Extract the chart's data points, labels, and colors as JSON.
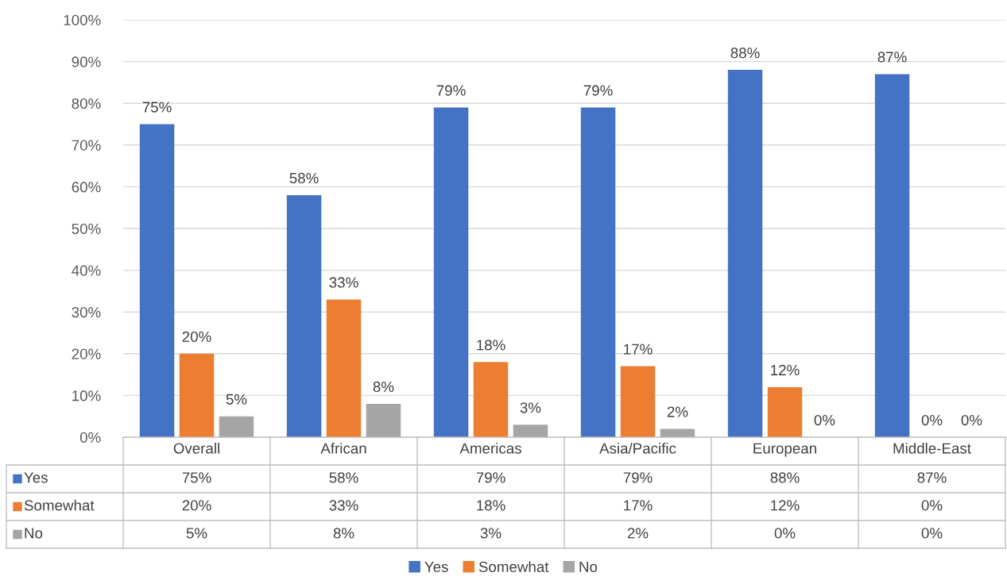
{
  "chart_data": {
    "type": "bar",
    "categories": [
      "Overall",
      "African",
      "Americas",
      "Asia/Pacific",
      "European",
      "Middle-East"
    ],
    "series": [
      {
        "name": "Yes",
        "color": "#4472c4",
        "values": [
          75,
          58,
          79,
          79,
          88,
          87
        ],
        "value_labels": [
          "75%",
          "58%",
          "79%",
          "79%",
          "88%",
          "87%"
        ]
      },
      {
        "name": "Somewhat",
        "color": "#ed7d31",
        "values": [
          20,
          33,
          18,
          17,
          12,
          0
        ],
        "value_labels": [
          "20%",
          "33%",
          "18%",
          "17%",
          "12%",
          "0%"
        ]
      },
      {
        "name": "No",
        "color": "#a5a5a5",
        "values": [
          5,
          8,
          3,
          2,
          0,
          0
        ],
        "value_labels": [
          "5%",
          "8%",
          "3%",
          "2%",
          "0%",
          "0%"
        ]
      }
    ],
    "ylim": [
      0,
      100
    ],
    "yticks": [
      {
        "value": 0,
        "label": "0%"
      },
      {
        "value": 10,
        "label": "10%"
      },
      {
        "value": 20,
        "label": "20%"
      },
      {
        "value": 30,
        "label": "30%"
      },
      {
        "value": 40,
        "label": "40%"
      },
      {
        "value": 50,
        "label": "50%"
      },
      {
        "value": 60,
        "label": "60%"
      },
      {
        "value": 70,
        "label": "70%"
      },
      {
        "value": 80,
        "label": "80%"
      },
      {
        "value": 90,
        "label": "90%"
      },
      {
        "value": 100,
        "label": "100%"
      }
    ],
    "grid": "y",
    "legend": "bottom"
  }
}
